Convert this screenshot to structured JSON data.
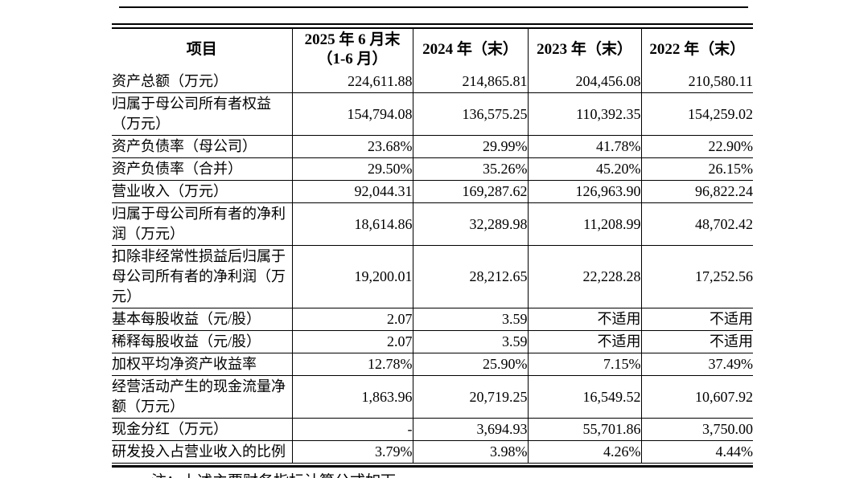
{
  "table": {
    "columns": [
      "项目",
      "2025 年 6 月末\n（1-6 月）",
      "2024 年（末）",
      "2023 年（末）",
      "2022 年（末）"
    ],
    "rows": [
      {
        "label": "资产总额（万元）",
        "values": [
          "224,611.88",
          "214,865.81",
          "204,456.08",
          "210,580.11"
        ]
      },
      {
        "label": "归属于母公司所有者权益（万元）",
        "values": [
          "154,794.08",
          "136,575.25",
          "110,392.35",
          "154,259.02"
        ]
      },
      {
        "label": "资产负债率（母公司）",
        "values": [
          "23.68%",
          "29.99%",
          "41.78%",
          "22.90%"
        ]
      },
      {
        "label": "资产负债率（合并）",
        "values": [
          "29.50%",
          "35.26%",
          "45.20%",
          "26.15%"
        ]
      },
      {
        "label": "营业收入（万元）",
        "values": [
          "92,044.31",
          "169,287.62",
          "126,963.90",
          "96,822.24"
        ]
      },
      {
        "label": "归属于母公司所有者的净利润（万元）",
        "values": [
          "18,614.86",
          "32,289.98",
          "11,208.99",
          "48,702.42"
        ]
      },
      {
        "label": "扣除非经常性损益后归属于母公司所有者的净利润（万元）",
        "values": [
          "19,200.01",
          "28,212.65",
          "22,228.28",
          "17,252.56"
        ]
      },
      {
        "label": "基本每股收益（元/股）",
        "values": [
          "2.07",
          "3.59",
          "不适用",
          "不适用"
        ]
      },
      {
        "label": "稀释每股收益（元/股）",
        "values": [
          "2.07",
          "3.59",
          "不适用",
          "不适用"
        ]
      },
      {
        "label": "加权平均净资产收益率",
        "values": [
          "12.78%",
          "25.90%",
          "7.15%",
          "37.49%"
        ]
      },
      {
        "label": "经营活动产生的现金流量净额（万元）",
        "values": [
          "1,863.96",
          "20,719.25",
          "16,549.52",
          "10,607.92"
        ]
      },
      {
        "label": "现金分红（万元）",
        "values": [
          "-",
          "3,694.93",
          "55,701.86",
          "3,750.00"
        ]
      },
      {
        "label": "研发投入占营业收入的比例",
        "values": [
          "3.79%",
          "3.98%",
          "4.26%",
          "4.44%"
        ]
      }
    ]
  },
  "footnote": {
    "text": "注：上述主要财务指标计算公式如下"
  }
}
